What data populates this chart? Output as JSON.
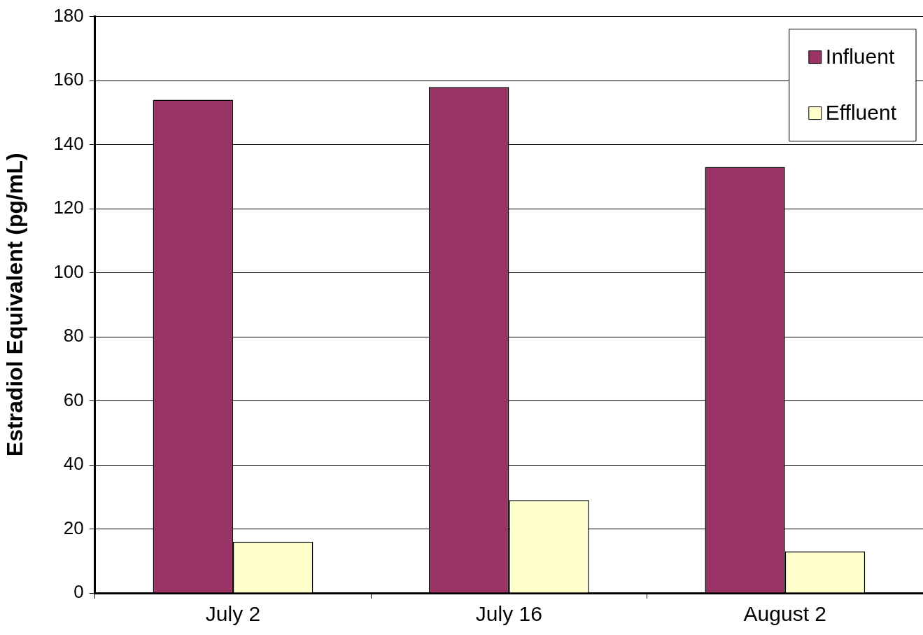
{
  "chart_data": {
    "type": "bar",
    "ylabel": "Estradiol Equivalent (pg/mL)",
    "categories": [
      "July 2",
      "July 16",
      "August 2"
    ],
    "series": [
      {
        "name": "Influent",
        "color": "#993366",
        "values": [
          154,
          158,
          133
        ]
      },
      {
        "name": "Effluent",
        "color": "#ffffcc",
        "values": [
          16,
          29,
          13
        ]
      }
    ],
    "ylim": [
      0,
      180
    ],
    "yticks": [
      0,
      20,
      40,
      60,
      80,
      100,
      120,
      140,
      160,
      180
    ],
    "grid": "y",
    "legend": "top right"
  }
}
